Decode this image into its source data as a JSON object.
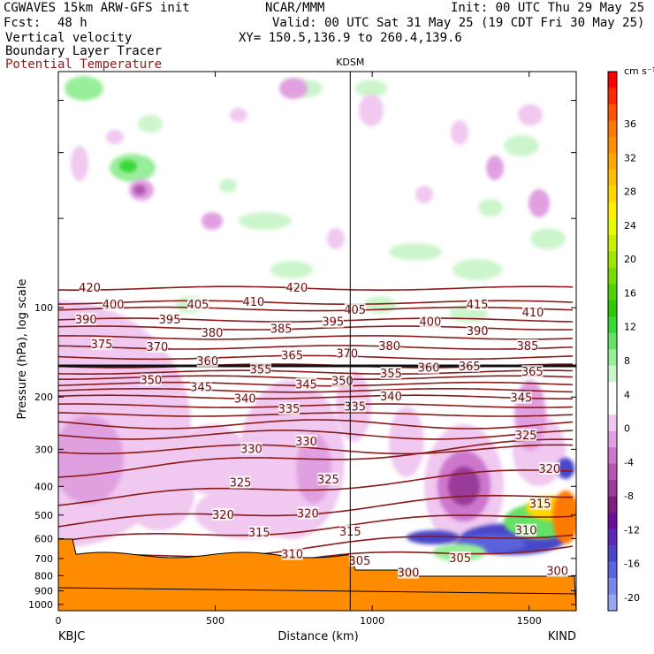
{
  "header": {
    "model": "CGWAVES 15km ARW-GFS init",
    "center": "NCAR/MMM",
    "init": "Init: 00 UTC Thu 29 May 25",
    "fcst_label": "Fcst:",
    "fcst_value": "48 h",
    "valid": "Valid: 00 UTC Sat 31 May 25 (19 CDT Fri 30 May 25)",
    "field1": "Vertical velocity",
    "field2": "Boundary Layer Tracer",
    "field3": "Potential Temperature",
    "xy": "XY= 150.5,136.9 to 260.4,139.6",
    "station_mid": "KDSM",
    "colors": {
      "theta": "#8b1a1a",
      "terrain": "#ff8c00",
      "tracer": "#111111"
    }
  },
  "chart_data": {
    "type": "heatmap",
    "title": "",
    "xlabel": "Distance (km)",
    "ylabel": "Pressure (hPa), log scale",
    "x_ticks": [
      "0",
      "500",
      "1000",
      "1500"
    ],
    "xlim": [
      0,
      1650
    ],
    "y_ticks": [
      "100",
      "200",
      "300",
      "400",
      "500",
      "600",
      "700",
      "800",
      "900",
      "1000"
    ],
    "y_scale": "log",
    "ylim": [
      1050,
      16
    ],
    "left_station": "KBJC",
    "right_station": "KIND",
    "mid_station_km": 930,
    "colorbar": {
      "unit": "cm s⁻¹",
      "labels": [
        "36",
        "32",
        "28",
        "24",
        "20",
        "16",
        "12",
        "8",
        "4",
        "0",
        "-4",
        "-8",
        "-12",
        "-16",
        "-20"
      ],
      "colors": [
        "#ff0000",
        "#ff2a00",
        "#ff5500",
        "#ff7a00",
        "#ff9100",
        "#ffa800",
        "#ffc000",
        "#ffd800",
        "#fff000",
        "#e8ff00",
        "#c8f000",
        "#a0e600",
        "#78dc00",
        "#50d200",
        "#30c800",
        "#38d838",
        "#66e066",
        "#99ee99",
        "#ccf5cc",
        "#ffffff",
        "#ffffff",
        "#f0c8f0",
        "#e0a0e0",
        "#cc77cc",
        "#b357b3",
        "#9a3a9a",
        "#7e1e7e",
        "#6a0f9a",
        "#5a2ab4",
        "#4a46c8",
        "#5a64dc",
        "#7a86ea",
        "#9aa6f2"
      ]
    },
    "theta_isentropes": [
      {
        "value": 420,
        "p": 86
      },
      {
        "value": 415,
        "p": 96
      },
      {
        "value": 410,
        "p": 101
      },
      {
        "value": 405,
        "p": 110
      },
      {
        "value": 400,
        "p": 117
      },
      {
        "value": 395,
        "p": 126
      },
      {
        "value": 390,
        "p": 136
      },
      {
        "value": 385,
        "p": 147
      },
      {
        "value": 380,
        "p": 157
      },
      {
        "value": 375,
        "p": 165
      },
      {
        "value": 370,
        "p": 172
      },
      {
        "value": 365,
        "p": 181
      },
      {
        "value": 360,
        "p": 190
      },
      {
        "value": 355,
        "p": 200
      },
      {
        "value": 350,
        "p": 214
      },
      {
        "value": 345,
        "p": 229
      },
      {
        "value": 340,
        "p": 247
      },
      {
        "value": 335,
        "p": 268
      },
      {
        "value": 330,
        "p": 300
      },
      {
        "value": 325,
        "p": 360
      },
      {
        "value": 320,
        "p": 450
      },
      {
        "value": 315,
        "p": 540
      },
      {
        "value": 310,
        "p": 620
      },
      {
        "value": 305,
        "p": 720
      },
      {
        "value": 300,
        "p": 800
      }
    ],
    "theta_labels": [
      {
        "t": "420",
        "x": 100,
        "p": 86
      },
      {
        "t": "420",
        "x": 760,
        "p": 86
      },
      {
        "t": "400",
        "x": 175,
        "p": 98
      },
      {
        "t": "405",
        "x": 445,
        "p": 98
      },
      {
        "t": "410",
        "x": 622,
        "p": 96
      },
      {
        "t": "405",
        "x": 945,
        "p": 102
      },
      {
        "t": "415",
        "x": 1335,
        "p": 98
      },
      {
        "t": "410",
        "x": 1512,
        "p": 104
      },
      {
        "t": "390",
        "x": 88,
        "p": 110
      },
      {
        "t": "395",
        "x": 355,
        "p": 110
      },
      {
        "t": "395",
        "x": 875,
        "p": 112
      },
      {
        "t": "400",
        "x": 1185,
        "p": 112
      },
      {
        "t": "380",
        "x": 490,
        "p": 122
      },
      {
        "t": "385",
        "x": 710,
        "p": 118
      },
      {
        "t": "390",
        "x": 1335,
        "p": 120
      },
      {
        "t": "375",
        "x": 138,
        "p": 133
      },
      {
        "t": "370",
        "x": 315,
        "p": 136
      },
      {
        "t": "380",
        "x": 1055,
        "p": 135
      },
      {
        "t": "385",
        "x": 1495,
        "p": 135
      },
      {
        "t": "370",
        "x": 920,
        "p": 143
      },
      {
        "t": "365",
        "x": 745,
        "p": 145
      },
      {
        "t": "360",
        "x": 475,
        "p": 152
      },
      {
        "t": "355",
        "x": 645,
        "p": 162
      },
      {
        "t": "360",
        "x": 1180,
        "p": 160
      },
      {
        "t": "365",
        "x": 1310,
        "p": 158
      },
      {
        "t": "365",
        "x": 1510,
        "p": 165
      },
      {
        "t": "355",
        "x": 1060,
        "p": 167
      },
      {
        "t": "350",
        "x": 295,
        "p": 176
      },
      {
        "t": "350",
        "x": 905,
        "p": 177
      },
      {
        "t": "345",
        "x": 455,
        "p": 186
      },
      {
        "t": "345",
        "x": 790,
        "p": 182
      },
      {
        "t": "340",
        "x": 595,
        "p": 203
      },
      {
        "t": "340",
        "x": 1060,
        "p": 200
      },
      {
        "t": "345",
        "x": 1475,
        "p": 202
      },
      {
        "t": "335",
        "x": 735,
        "p": 220
      },
      {
        "t": "335",
        "x": 945,
        "p": 216
      },
      {
        "t": "325",
        "x": 1490,
        "p": 270
      },
      {
        "t": "330",
        "x": 790,
        "p": 283
      },
      {
        "t": "330",
        "x": 615,
        "p": 300
      },
      {
        "t": "320",
        "x": 1565,
        "p": 350
      },
      {
        "t": "325",
        "x": 580,
        "p": 390
      },
      {
        "t": "325",
        "x": 860,
        "p": 380
      },
      {
        "t": "315",
        "x": 1535,
        "p": 460
      },
      {
        "t": "320",
        "x": 525,
        "p": 500
      },
      {
        "t": "320",
        "x": 795,
        "p": 495
      },
      {
        "t": "310",
        "x": 1490,
        "p": 565
      },
      {
        "t": "315",
        "x": 640,
        "p": 575
      },
      {
        "t": "315",
        "x": 930,
        "p": 570
      },
      {
        "t": "310",
        "x": 745,
        "p": 680
      },
      {
        "t": "305",
        "x": 960,
        "p": 715
      },
      {
        "t": "305",
        "x": 1280,
        "p": 700
      },
      {
        "t": "300",
        "x": 1115,
        "p": 785
      },
      {
        "t": "300",
        "x": 1590,
        "p": 775
      }
    ]
  }
}
